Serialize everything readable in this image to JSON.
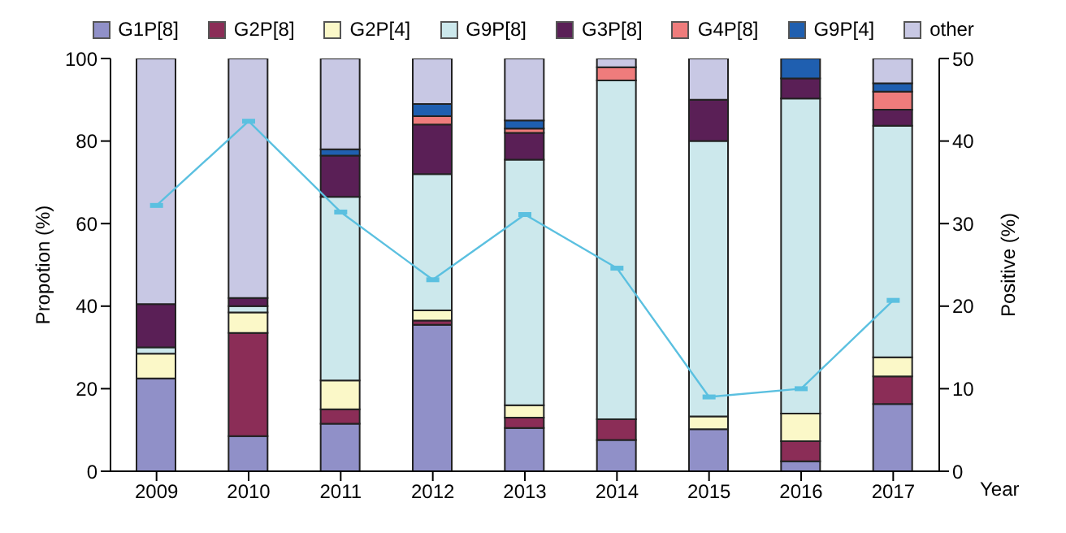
{
  "chart_data": {
    "type": "bar",
    "stacked": true,
    "categories": [
      "2009",
      "2010",
      "2011",
      "2012",
      "2013",
      "2014",
      "2015",
      "2016",
      "2017"
    ],
    "xlabel": "Year",
    "ylabel": "Propotion (%)",
    "y2label": "Positive (%)",
    "ylim": [
      0,
      100
    ],
    "yticks": [
      0,
      20,
      40,
      60,
      80,
      100
    ],
    "y2lim": [
      0,
      50
    ],
    "y2ticks": [
      0,
      10,
      20,
      30,
      40,
      50
    ],
    "grid": false,
    "legend": "top",
    "series": [
      {
        "name": "G1P[8]",
        "color": "#9090c8",
        "values": [
          22.5,
          8.5,
          11.5,
          35.5,
          10.5,
          7.6,
          10.2,
          2.4,
          16.3
        ]
      },
      {
        "name": "G2P[8]",
        "color": "#8b2d57",
        "values": [
          0,
          25,
          3.5,
          1,
          2.5,
          5,
          0,
          4.9,
          6.7
        ]
      },
      {
        "name": "G2P[4]",
        "color": "#fbf8c8",
        "values": [
          6,
          5,
          7,
          2.5,
          3,
          0,
          3.1,
          6.7,
          4.6
        ]
      },
      {
        "name": "G9P[8]",
        "color": "#cce8ec",
        "values": [
          1.5,
          1.5,
          44.5,
          33,
          59.5,
          82.1,
          66.7,
          76.3,
          56.1
        ]
      },
      {
        "name": "G3P[8]",
        "color": "#5a1f56",
        "values": [
          10.5,
          2,
          10,
          12,
          6.5,
          0,
          10,
          4.9,
          3.9
        ]
      },
      {
        "name": "G4P[8]",
        "color": "#ef7c7c",
        "values": [
          0,
          0,
          0,
          2,
          1,
          3.2,
          0,
          0,
          4.4
        ]
      },
      {
        "name": "G9P[4]",
        "color": "#1f5fb0",
        "values": [
          0,
          0,
          1.5,
          3,
          2,
          0,
          0,
          4.8,
          2
        ]
      },
      {
        "name": "other",
        "color": "#c8c8e4",
        "values": [
          59.5,
          58,
          22,
          11,
          15,
          2.1,
          10,
          0,
          6
        ]
      },
      {
        "type": "line",
        "axis": "y2",
        "color": "#5bc0e0",
        "marker": "square",
        "values": [
          32.2,
          42.4,
          31.4,
          23.2,
          31.1,
          24.6,
          9.0,
          10.0,
          20.7
        ]
      }
    ]
  }
}
